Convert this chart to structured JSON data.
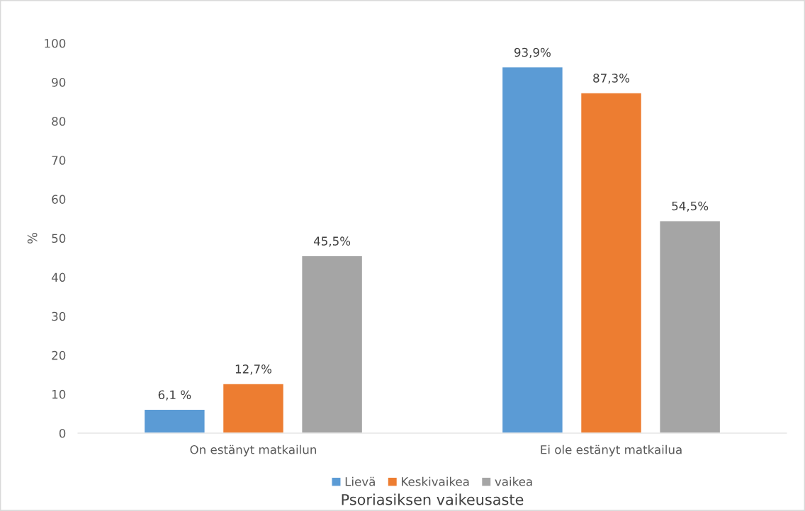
{
  "chart_data": {
    "type": "bar",
    "categories": [
      "On estänyt matkailun",
      "Ei ole estänyt matkailua"
    ],
    "xlabel": "Psoriasiksen vaikeusaste",
    "ylabel": "%",
    "ylim": [
      0,
      100
    ],
    "yticks": [
      0,
      10,
      20,
      30,
      40,
      50,
      60,
      70,
      80,
      90,
      100
    ],
    "grid": false,
    "legend": "bottom",
    "series": [
      {
        "name": "Lievä",
        "color": "#5b9bd5",
        "values": [
          6.1,
          93.9
        ],
        "value_labels": [
          "6,1 %",
          "93,9%"
        ]
      },
      {
        "name": "Keskivaikea",
        "color": "#ed7d31",
        "values": [
          12.7,
          87.3
        ],
        "value_labels": [
          "12,7%",
          "87,3%"
        ]
      },
      {
        "name": "vaikea",
        "color": "#a5a5a5",
        "values": [
          45.5,
          54.5
        ],
        "value_labels": [
          "45,5%",
          "54,5%"
        ]
      }
    ]
  }
}
